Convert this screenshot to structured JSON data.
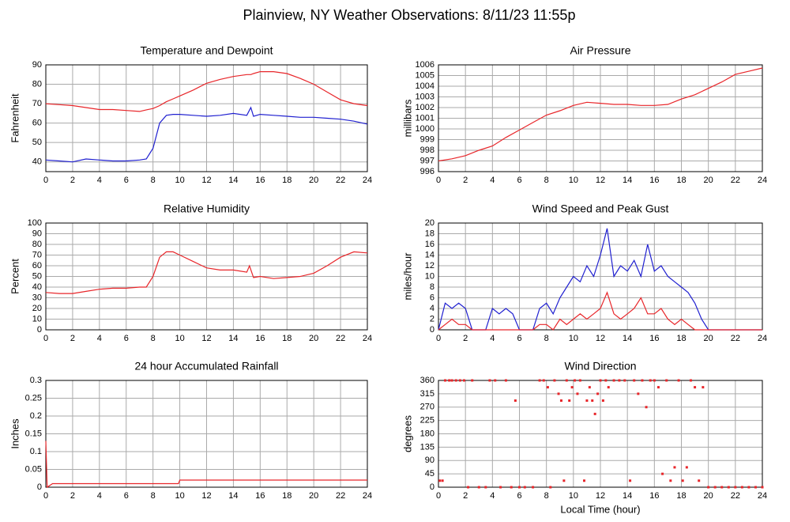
{
  "title": "Plainview, NY Weather Observations: 8/11/23 11:55p",
  "chart_data": [
    {
      "type": "line",
      "title": "Temperature and Dewpoint",
      "ylabel": "Fahrenheit",
      "x": [
        0,
        1,
        2,
        3,
        4,
        5,
        6,
        7,
        7.5,
        8,
        8.5,
        9,
        9.5,
        10,
        11,
        12,
        13,
        14,
        15,
        15.3,
        15.5,
        16,
        17,
        18,
        19,
        20,
        21,
        22,
        23,
        24
      ],
      "series": [
        {
          "color": "#e8262a",
          "values": [
            70,
            69.5,
            69,
            68,
            67,
            67,
            66.5,
            66,
            66.8,
            67.5,
            69,
            71,
            72.5,
            74,
            77,
            80.5,
            82.5,
            84,
            85,
            85,
            85.5,
            86.5,
            86.5,
            85.5,
            83,
            80,
            76,
            72,
            70,
            69
          ]
        },
        {
          "color": "#2020d0",
          "values": [
            41,
            40.5,
            40,
            41.5,
            41,
            40.5,
            40.5,
            41,
            41.5,
            47,
            60,
            64,
            64.5,
            64.5,
            64,
            63.5,
            64,
            65,
            64,
            68,
            63.5,
            64.5,
            64,
            63.5,
            63,
            63,
            62.5,
            62,
            61,
            59.5
          ]
        }
      ],
      "xlim": [
        0,
        24
      ],
      "xticks": [
        0,
        2,
        4,
        6,
        8,
        10,
        12,
        14,
        16,
        18,
        20,
        22,
        24
      ],
      "ylim": [
        35,
        90
      ],
      "yticks": [
        40,
        50,
        60,
        70,
        80,
        90
      ]
    },
    {
      "type": "line",
      "title": "Air Pressure",
      "ylabel": "millibars",
      "x": [
        0,
        1,
        2,
        3,
        4,
        5,
        6,
        7,
        8,
        9,
        10,
        11,
        12,
        13,
        14,
        15,
        16,
        17,
        18,
        19,
        20,
        21,
        22,
        23,
        24
      ],
      "series": [
        {
          "color": "#e8262a",
          "values": [
            997,
            997.2,
            997.5,
            998,
            998.4,
            999.2,
            999.9,
            1000.6,
            1001.3,
            1001.7,
            1002.2,
            1002.5,
            1002.4,
            1002.3,
            1002.3,
            1002.2,
            1002.2,
            1002.3,
            1002.8,
            1003.2,
            1003.8,
            1004.4,
            1005.1,
            1005.4,
            1005.7
          ]
        }
      ],
      "xlim": [
        0,
        24
      ],
      "xticks": [
        0,
        2,
        4,
        6,
        8,
        10,
        12,
        14,
        16,
        18,
        20,
        22,
        24
      ],
      "ylim": [
        996,
        1006
      ],
      "yticks": [
        996,
        997,
        998,
        999,
        1000,
        1001,
        1002,
        1003,
        1004,
        1005,
        1006
      ]
    },
    {
      "type": "line",
      "title": "Relative Humidity",
      "ylabel": "Percent",
      "x": [
        0,
        1,
        2,
        3,
        4,
        5,
        6,
        7,
        7.5,
        8,
        8.5,
        9,
        9.5,
        10,
        11,
        12,
        13,
        14,
        15,
        15.2,
        15.5,
        16,
        17,
        18,
        19,
        20,
        21,
        22,
        23,
        24
      ],
      "series": [
        {
          "color": "#e8262a",
          "values": [
            35,
            34,
            34,
            36,
            38,
            39,
            39,
            40,
            40,
            50,
            68,
            73,
            73,
            70,
            64,
            58,
            56,
            56,
            54,
            60,
            49,
            50,
            48,
            49,
            50,
            53,
            60,
            68,
            73,
            72
          ]
        }
      ],
      "xlim": [
        0,
        24
      ],
      "xticks": [
        0,
        2,
        4,
        6,
        8,
        10,
        12,
        14,
        16,
        18,
        20,
        22,
        24
      ],
      "ylim": [
        0,
        100
      ],
      "yticks": [
        0,
        10,
        20,
        30,
        40,
        50,
        60,
        70,
        80,
        90,
        100
      ]
    },
    {
      "type": "line",
      "title": "Wind Speed and Peak Gust",
      "ylabel": "miles/hour",
      "x": [
        0,
        0.5,
        1,
        1.5,
        2,
        2.5,
        3,
        3.5,
        4,
        4.5,
        5,
        5.5,
        6,
        6.5,
        7,
        7.5,
        8,
        8.5,
        9,
        9.5,
        10,
        10.5,
        11,
        11.5,
        12,
        12.5,
        13,
        13.5,
        14,
        14.5,
        15,
        15.5,
        16,
        16.5,
        17,
        17.5,
        18,
        18.5,
        19,
        19.5,
        20,
        20.5,
        21,
        21.5,
        22,
        22.5,
        23,
        23.5,
        24
      ],
      "series": [
        {
          "color": "#2020d0",
          "values": [
            0,
            5,
            4,
            5,
            4,
            0,
            0,
            0,
            4,
            3,
            4,
            3,
            0,
            0,
            0,
            4,
            5,
            3,
            6,
            8,
            10,
            9,
            12,
            10,
            14,
            19,
            10,
            12,
            11,
            13,
            10,
            16,
            11,
            12,
            10,
            9,
            8,
            7,
            5,
            2,
            0,
            0,
            0,
            0,
            0,
            0,
            0,
            0,
            0
          ]
        },
        {
          "color": "#e8262a",
          "values": [
            0,
            1,
            2,
            1,
            1,
            0,
            0,
            0,
            0,
            0,
            0,
            0,
            0,
            0,
            0,
            1,
            1,
            0,
            2,
            1,
            2,
            3,
            2,
            3,
            4,
            7,
            3,
            2,
            3,
            4,
            6,
            3,
            3,
            4,
            2,
            1,
            2,
            1,
            0,
            0,
            0,
            0,
            0,
            0,
            0,
            0,
            0,
            0,
            0
          ]
        }
      ],
      "xlim": [
        0,
        24
      ],
      "xticks": [
        0,
        2,
        4,
        6,
        8,
        10,
        12,
        14,
        16,
        18,
        20,
        22,
        24
      ],
      "ylim": [
        0,
        20
      ],
      "yticks": [
        0,
        2,
        4,
        6,
        8,
        10,
        12,
        14,
        16,
        18,
        20
      ]
    },
    {
      "type": "line",
      "title": "24 hour Accumulated Rainfall",
      "ylabel": "Inches",
      "x": [
        0,
        0.1,
        0.5,
        9.9,
        10,
        24
      ],
      "series": [
        {
          "color": "#e8262a",
          "values": [
            0.13,
            0,
            0.01,
            0.01,
            0.02,
            0.02
          ]
        }
      ],
      "xlim": [
        0,
        24
      ],
      "xticks": [
        0,
        2,
        4,
        6,
        8,
        10,
        12,
        14,
        16,
        18,
        20,
        22,
        24
      ],
      "ylim": [
        0,
        0.3
      ],
      "yticks": [
        0,
        0.05,
        0.1,
        0.15,
        0.2,
        0.25,
        0.3
      ]
    },
    {
      "type": "scatter",
      "title": "Wind Direction",
      "ylabel": "degrees",
      "xlabel": "Local Time (hour)",
      "x": [
        0.1,
        0.3,
        0.5,
        0.8,
        1,
        1.3,
        1.6,
        1.9,
        2.2,
        2.5,
        3,
        3.5,
        3.8,
        4.2,
        4.6,
        5,
        5.4,
        5.7,
        6,
        6.4,
        7,
        7.5,
        7.8,
        8.1,
        8.3,
        8.6,
        8.9,
        9.1,
        9.3,
        9.5,
        9.7,
        9.9,
        10.1,
        10.3,
        10.5,
        10.8,
        11,
        11.2,
        11.4,
        11.6,
        11.8,
        12,
        12.2,
        12.4,
        12.6,
        13,
        13.4,
        13.8,
        14.2,
        14.5,
        14.8,
        15.1,
        15.4,
        15.7,
        16,
        16.3,
        16.6,
        16.9,
        17.2,
        17.5,
        17.8,
        18.1,
        18.4,
        18.7,
        19,
        19.3,
        19.6,
        20,
        20.5,
        21,
        21.5,
        22,
        22.5,
        23,
        23.5,
        24
      ],
      "series": [
        {
          "color": "#e8262a",
          "values": [
            22,
            22,
            360,
            360,
            360,
            360,
            360,
            360,
            0,
            360,
            0,
            0,
            360,
            360,
            0,
            360,
            0,
            292,
            0,
            0,
            0,
            360,
            360,
            337,
            0,
            360,
            315,
            292,
            22,
            360,
            292,
            337,
            360,
            315,
            360,
            22,
            292,
            337,
            292,
            247,
            315,
            360,
            292,
            360,
            337,
            360,
            360,
            360,
            22,
            360,
            315,
            360,
            270,
            360,
            360,
            337,
            45,
            360,
            22,
            67,
            360,
            22,
            67,
            360,
            337,
            22,
            337,
            0,
            0,
            0,
            0,
            0,
            0,
            0,
            0,
            0
          ]
        }
      ],
      "xlim": [
        0,
        24
      ],
      "xticks": [
        0,
        2,
        4,
        6,
        8,
        10,
        12,
        14,
        16,
        18,
        20,
        22,
        24
      ],
      "ylim": [
        0,
        360
      ],
      "yticks": [
        0,
        45,
        90,
        135,
        180,
        225,
        270,
        315,
        360
      ]
    }
  ]
}
